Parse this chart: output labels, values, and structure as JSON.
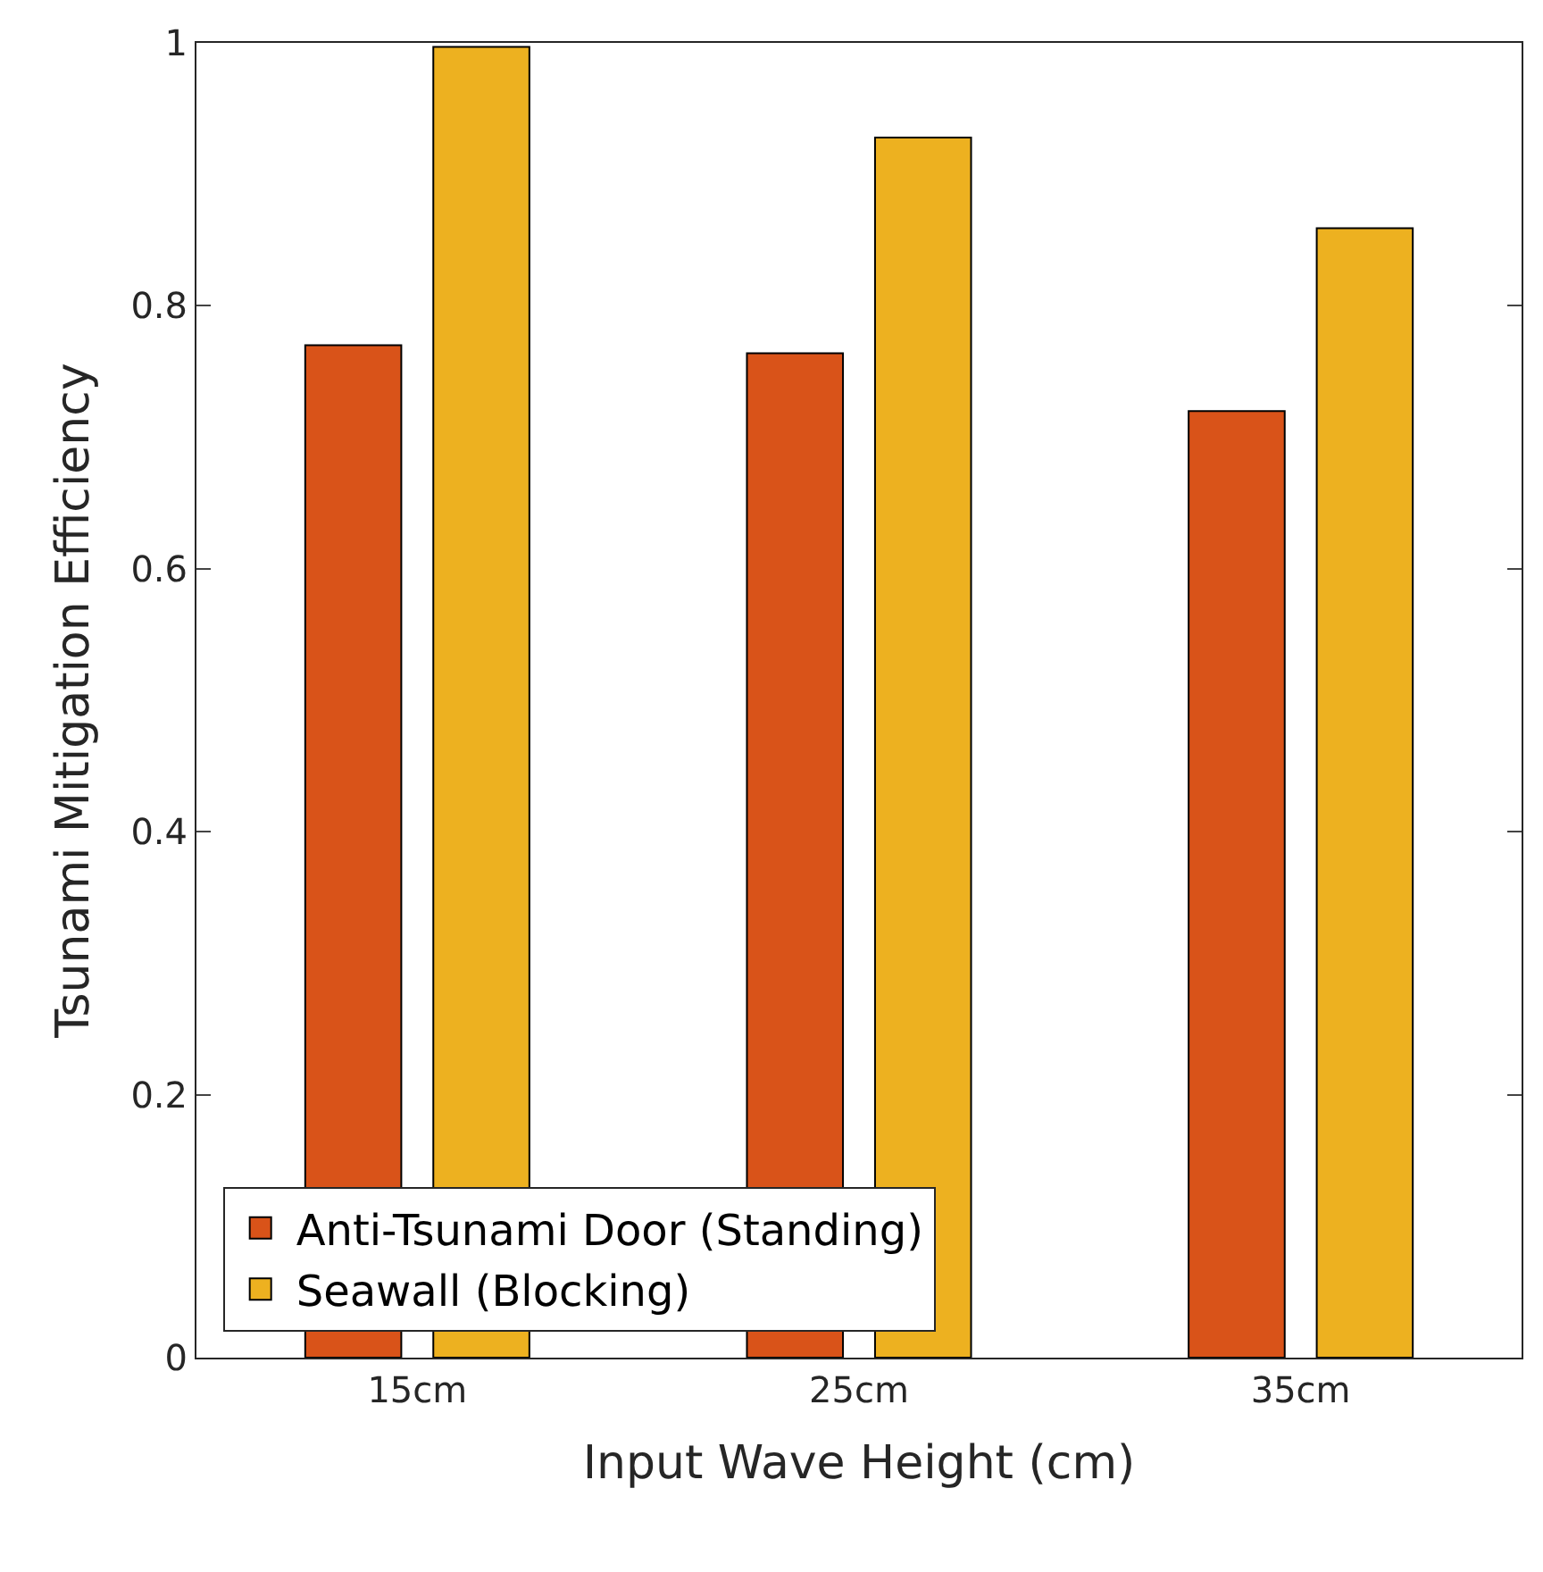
{
  "chart_data": {
    "type": "bar",
    "xlabel": "Input Wave Height (cm)",
    "ylabel": "Tsunami Mitigation Efficiency",
    "categories": [
      "15cm",
      "25cm",
      "35cm"
    ],
    "series": [
      {
        "name": "Anti-Tsunami Door (Standing)",
        "color": "#d95319",
        "values": [
          0.77,
          0.764,
          0.72
        ]
      },
      {
        "name": "Seawall (Blocking)",
        "color": "#edb120",
        "values": [
          0.997,
          0.928,
          0.859
        ]
      }
    ],
    "ylim": [
      0,
      1
    ],
    "yticks": [
      0,
      0.2,
      0.4,
      0.6,
      0.8,
      1
    ],
    "grid": false,
    "legend": "bottom left"
  }
}
